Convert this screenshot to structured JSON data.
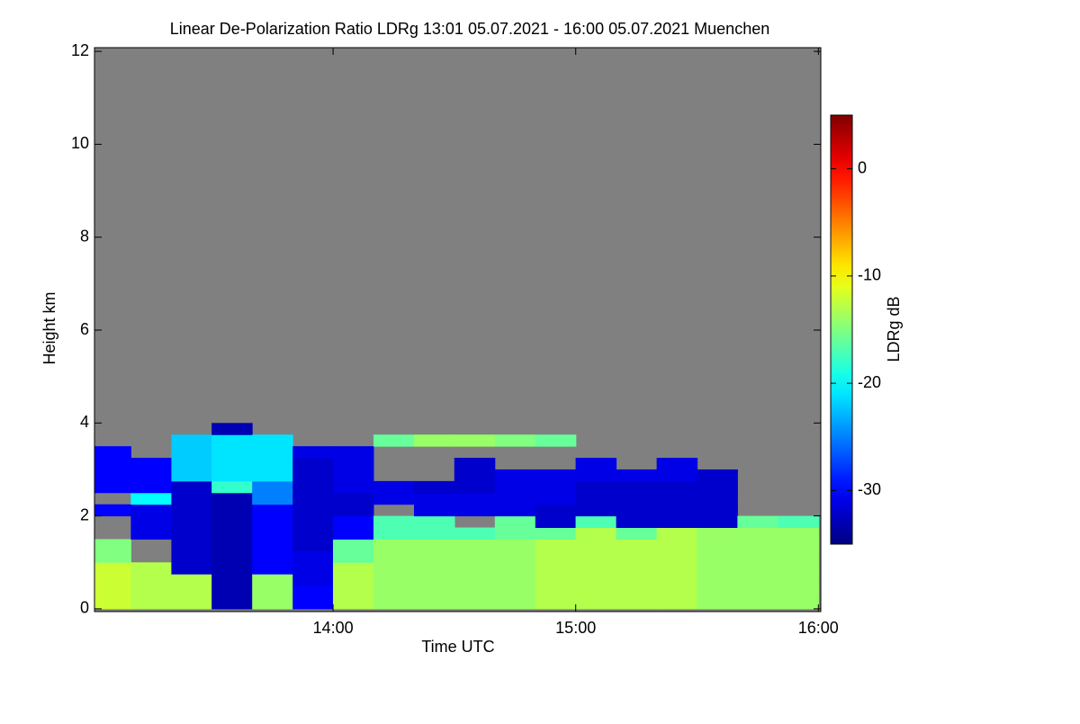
{
  "chart_data": {
    "type": "heatmap",
    "title": "Linear De-Polarization Ratio LDRg   13:01 05.07.2021 - 16:00 05.07.2021 Muenchen",
    "x_label": "Time UTC",
    "y_label": "Height km",
    "colorbar_label": "LDRg dB",
    "colormap": "jet",
    "nan_color": "#808080",
    "xlim": [
      13.0167,
      16.01
    ],
    "xticks": [
      {
        "value": 14,
        "label": "14:00"
      },
      {
        "value": 15,
        "label": "15:00"
      },
      {
        "value": 16,
        "label": "16:00"
      }
    ],
    "ylim": [
      -0.06,
      12.08
    ],
    "yticks": [
      0,
      2,
      4,
      6,
      8,
      10,
      12
    ],
    "zlim": [
      -35,
      5
    ],
    "zticks": [
      0,
      -10,
      -20,
      -30
    ],
    "x": [
      13.083,
      13.25,
      13.417,
      13.583,
      13.75,
      13.917,
      14.083,
      14.25,
      14.417,
      14.583,
      14.75,
      14.917,
      15.083,
      15.25,
      15.417,
      15.583,
      15.75,
      15.917
    ],
    "y": [
      0.125,
      0.375,
      0.625,
      0.875,
      1.125,
      1.375,
      1.625,
      1.875,
      2.125,
      2.375,
      2.625,
      2.875,
      3.125,
      3.375,
      3.625,
      3.875,
      4.125
    ],
    "z": [
      [
        -12,
        -12,
        -12,
        -12,
        -15,
        -15,
        null,
        null,
        -30,
        null,
        -30,
        -30,
        -30,
        -30,
        null,
        null,
        null
      ],
      [
        -13,
        -13,
        -13,
        -13,
        null,
        null,
        -31,
        -31,
        -31,
        -20,
        -30,
        -30,
        -30,
        null,
        null,
        null,
        null
      ],
      [
        -13,
        -13,
        -13,
        -32,
        -32,
        -32,
        -32,
        -32,
        -32,
        -32,
        -32,
        -22,
        -22,
        -22,
        -22,
        null,
        null
      ],
      [
        -33,
        -33,
        -33,
        -33,
        -33,
        -33,
        -33,
        -33,
        -33,
        -33,
        -18,
        -21,
        -21,
        -21,
        -21,
        -33,
        null
      ],
      [
        -14,
        -14,
        -14,
        -30,
        -30,
        -30,
        -30,
        -30,
        -30,
        -25,
        -25,
        -21,
        -21,
        -21,
        -21,
        null,
        null
      ],
      [
        -30,
        -30,
        -31,
        -31,
        -31,
        -32,
        -32,
        -32,
        -32,
        -32,
        -32,
        -32,
        -32,
        -31,
        null,
        null,
        null
      ],
      [
        -13,
        -13,
        -13,
        -13,
        -16,
        -16,
        -30,
        -30,
        -32,
        -32,
        -31,
        -31,
        -31,
        -31,
        null,
        null,
        null
      ],
      [
        -14,
        -14,
        -14,
        -14,
        -14,
        -14,
        -17,
        -17,
        null,
        -31,
        -31,
        null,
        null,
        null,
        -16,
        null,
        null
      ],
      [
        -14,
        -14,
        -14,
        -14,
        -14,
        -14,
        -17,
        -17,
        -31,
        -31,
        -32,
        null,
        null,
        null,
        -14,
        null,
        null
      ],
      [
        -14,
        -14,
        -14,
        -14,
        -14,
        -14,
        -17,
        null,
        -31,
        -31,
        -32,
        -32,
        -32,
        null,
        -14,
        null,
        null
      ],
      [
        -14,
        -14,
        -14,
        -14,
        -14,
        -14,
        -16,
        -16,
        -31,
        -31,
        -31,
        -31,
        null,
        null,
        -15,
        null,
        null
      ],
      [
        -13,
        -13,
        -13,
        -13,
        -13,
        -13,
        -16,
        -32,
        -32,
        -31,
        -31,
        -31,
        null,
        null,
        -16,
        null,
        null
      ],
      [
        -13,
        -13,
        -13,
        -13,
        -13,
        -13,
        -13,
        -17,
        -32,
        -32,
        -32,
        -31,
        -31,
        null,
        null,
        null,
        null
      ],
      [
        -13,
        -13,
        -13,
        -13,
        -13,
        -13,
        -16,
        -32,
        -32,
        -32,
        -32,
        -31,
        null,
        null,
        null,
        null,
        null
      ],
      [
        -13,
        -13,
        -13,
        -13,
        -13,
        -13,
        -13,
        -32,
        -32,
        -32,
        -32,
        -31,
        -31,
        null,
        null,
        null,
        null
      ],
      [
        -14,
        -14,
        -14,
        -14,
        -14,
        -14,
        -14,
        -32,
        -32,
        -32,
        -32,
        -32,
        null,
        null,
        null,
        null,
        null
      ],
      [
        -14,
        -14,
        -14,
        -14,
        -14,
        -14,
        -14,
        -16,
        null,
        null,
        null,
        null,
        null,
        null,
        null,
        null,
        null
      ],
      [
        -14,
        -14,
        -14,
        -14,
        -14,
        -14,
        -14,
        -17,
        null,
        null,
        null,
        null,
        null,
        null,
        null,
        null,
        null
      ]
    ]
  }
}
